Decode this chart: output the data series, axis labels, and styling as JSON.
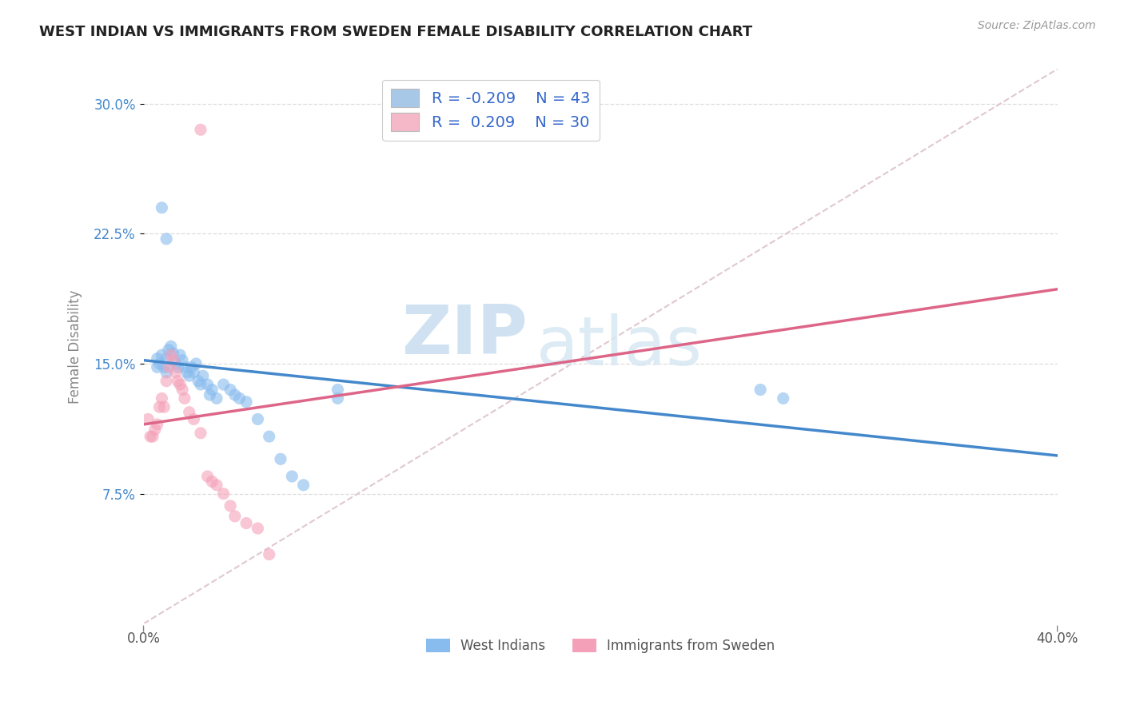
{
  "title": "WEST INDIAN VS IMMIGRANTS FROM SWEDEN FEMALE DISABILITY CORRELATION CHART",
  "source": "Source: ZipAtlas.com",
  "ylabel": "Female Disability",
  "ytick_labels": [
    "7.5%",
    "15.0%",
    "22.5%",
    "30.0%"
  ],
  "ytick_values": [
    0.075,
    0.15,
    0.225,
    0.3
  ],
  "xlim": [
    0.0,
    0.4
  ],
  "ylim": [
    0.0,
    0.32
  ],
  "legend_label1": "R = -0.209    N = 43",
  "legend_label2": "R =  0.209    N = 30",
  "legend_color1": "#a8c8e8",
  "legend_color2": "#f4b8c8",
  "xlabel_label1": "West Indians",
  "xlabel_label2": "Immigrants from Sweden",
  "color_blue": "#88bbee",
  "color_pink": "#f4a0b8",
  "watermark_zip": "ZIP",
  "watermark_atlas": "atlas",
  "blue_scatter_x": [
    0.006,
    0.006,
    0.007,
    0.008,
    0.009,
    0.01,
    0.01,
    0.011,
    0.012,
    0.013,
    0.014,
    0.015,
    0.016,
    0.017,
    0.018,
    0.019,
    0.02,
    0.021,
    0.022,
    0.023,
    0.024,
    0.025,
    0.026,
    0.028,
    0.029,
    0.03,
    0.032,
    0.035,
    0.038,
    0.04,
    0.042,
    0.045,
    0.05,
    0.055,
    0.06,
    0.065,
    0.07,
    0.085,
    0.085,
    0.27,
    0.28,
    0.008,
    0.01
  ],
  "blue_scatter_y": [
    0.153,
    0.148,
    0.15,
    0.155,
    0.148,
    0.153,
    0.145,
    0.158,
    0.16,
    0.156,
    0.15,
    0.148,
    0.155,
    0.152,
    0.148,
    0.145,
    0.143,
    0.148,
    0.145,
    0.15,
    0.14,
    0.138,
    0.143,
    0.138,
    0.132,
    0.135,
    0.13,
    0.138,
    0.135,
    0.132,
    0.13,
    0.128,
    0.118,
    0.108,
    0.095,
    0.085,
    0.08,
    0.135,
    0.13,
    0.135,
    0.13,
    0.24,
    0.222
  ],
  "pink_scatter_x": [
    0.002,
    0.003,
    0.004,
    0.005,
    0.006,
    0.007,
    0.008,
    0.009,
    0.01,
    0.011,
    0.012,
    0.013,
    0.014,
    0.015,
    0.016,
    0.017,
    0.018,
    0.02,
    0.022,
    0.025,
    0.028,
    0.03,
    0.032,
    0.035,
    0.038,
    0.04,
    0.045,
    0.05,
    0.025,
    0.055
  ],
  "pink_scatter_y": [
    0.118,
    0.108,
    0.108,
    0.112,
    0.115,
    0.125,
    0.13,
    0.125,
    0.14,
    0.148,
    0.155,
    0.152,
    0.145,
    0.14,
    0.138,
    0.135,
    0.13,
    0.122,
    0.118,
    0.11,
    0.085,
    0.082,
    0.08,
    0.075,
    0.068,
    0.062,
    0.058,
    0.055,
    0.285,
    0.04
  ],
  "blue_trend_x": [
    0.0,
    0.4
  ],
  "blue_trend_y": [
    0.152,
    0.097
  ],
  "pink_trend_x": [
    0.0,
    0.4
  ],
  "pink_trend_y": [
    0.115,
    0.193
  ],
  "ref_line_x": [
    0.0,
    0.4
  ],
  "ref_line_y": [
    0.0,
    0.32
  ],
  "xtick_positions": [
    0.0,
    0.4
  ],
  "xtick_labels": [
    "0.0%",
    "40.0%"
  ]
}
